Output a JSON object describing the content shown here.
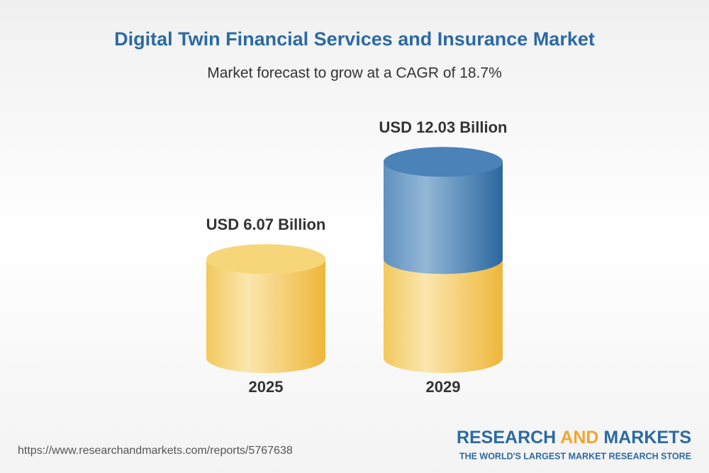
{
  "chart_data": {
    "type": "bar",
    "title": "Digital Twin Financial Services and Insurance Market",
    "subtitle": "Market forecast to grow at a CAGR of 18.7%",
    "categories": [
      "2025",
      "2029"
    ],
    "values": [
      6.07,
      12.03
    ],
    "value_labels": [
      "USD 6.07 Billion",
      "USD 12.03 Billion"
    ],
    "colors": [
      "#f2c04a",
      "#3f79b0"
    ]
  },
  "footer": {
    "url": "https://www.researchandmarkets.com/reports/5767638",
    "logo_research": "RESEARCH",
    "logo_and": "AND",
    "logo_markets": "MARKETS",
    "tagline": "THE WORLD'S LARGEST MARKET RESEARCH STORE"
  }
}
